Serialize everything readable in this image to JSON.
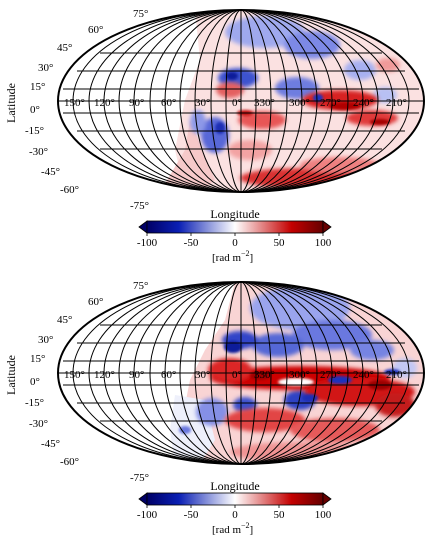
{
  "colors": {
    "negative": "#0a1fb4",
    "mid": "#ffffff",
    "positive": "#c40000",
    "dark_negative": "#000066",
    "dark_positive": "#660000",
    "grid": "#000000"
  },
  "panels": [
    {
      "id": "top",
      "latitude_title": "Latitude",
      "longitude_title": "Longitude",
      "lat_labels": [
        "75°",
        "60°",
        "45°",
        "30°",
        "15°",
        "0°",
        "-15°",
        "-30°",
        "-45°",
        "-60°",
        "-75°"
      ],
      "lon_labels": [
        "150°",
        "120°",
        "90°",
        "60°",
        "30°",
        "0°",
        "330°",
        "300°",
        "270°",
        "240°",
        "210°"
      ],
      "colorbar": {
        "ticks": [
          "-100",
          "-50",
          "0",
          "50",
          "100"
        ],
        "units_prefix": "[rad m",
        "units_exponent": "−2",
        "units_suffix": "]",
        "range": [
          -100,
          100
        ]
      }
    },
    {
      "id": "bottom",
      "latitude_title": "Latitude",
      "longitude_title": "Longitude",
      "lat_labels": [
        "75°",
        "60°",
        "45°",
        "30°",
        "15°",
        "0°",
        "-15°",
        "-30°",
        "-45°",
        "-60°",
        "-75°"
      ],
      "lon_labels": [
        "150°",
        "120°",
        "90°",
        "60°",
        "30°",
        "0°",
        "330°",
        "300°",
        "270°",
        "240°",
        "210°"
      ],
      "colorbar": {
        "ticks": [
          "-100",
          "-50",
          "0",
          "50",
          "100"
        ],
        "units_prefix": "[rad m",
        "units_exponent": "−2",
        "units_suffix": "]",
        "range": [
          -100,
          100
        ]
      }
    }
  ]
}
